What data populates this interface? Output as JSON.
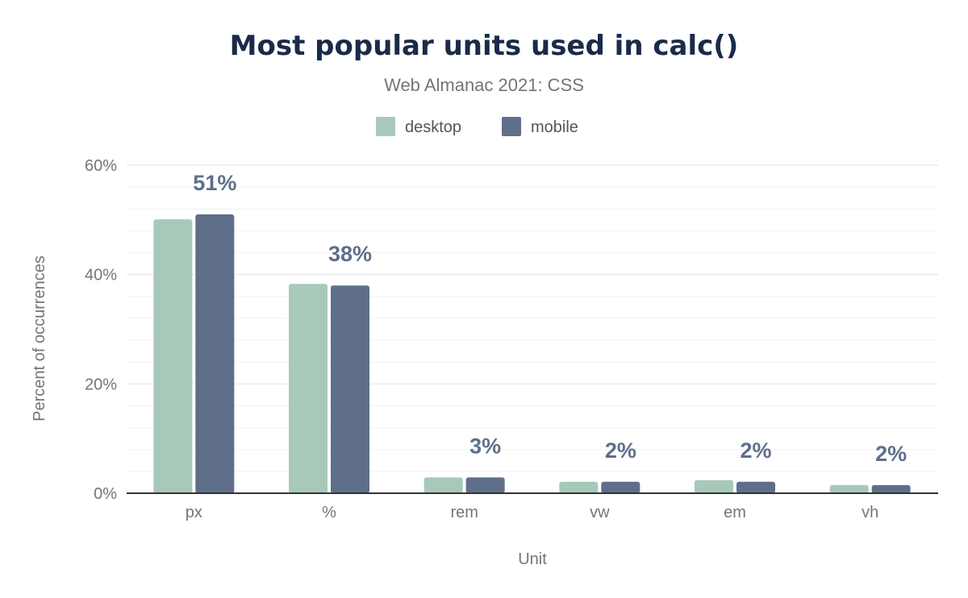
{
  "chart_data": {
    "type": "bar",
    "title": "Most popular units used in calc()",
    "subtitle": "Web Almanac 2021: CSS",
    "xlabel": "Unit",
    "ylabel": "Percent of occurrences",
    "categories": [
      "px",
      "%",
      "rem",
      "vw",
      "em",
      "vh"
    ],
    "series": [
      {
        "name": "desktop",
        "color": "#a8c9b9",
        "values": [
          50.1,
          38.3,
          2.9,
          2.1,
          2.4,
          1.5
        ]
      },
      {
        "name": "mobile",
        "color": "#5f6f8a",
        "values": [
          51.0,
          38.0,
          2.9,
          2.1,
          2.1,
          1.5
        ],
        "data_labels": [
          "51%",
          "38%",
          "3%",
          "2%",
          "2%",
          "2%"
        ]
      }
    ],
    "ylim": [
      0,
      60
    ],
    "yticks": [
      "0%",
      "20%",
      "40%",
      "60%"
    ],
    "grid": true,
    "legend": "top-center"
  }
}
